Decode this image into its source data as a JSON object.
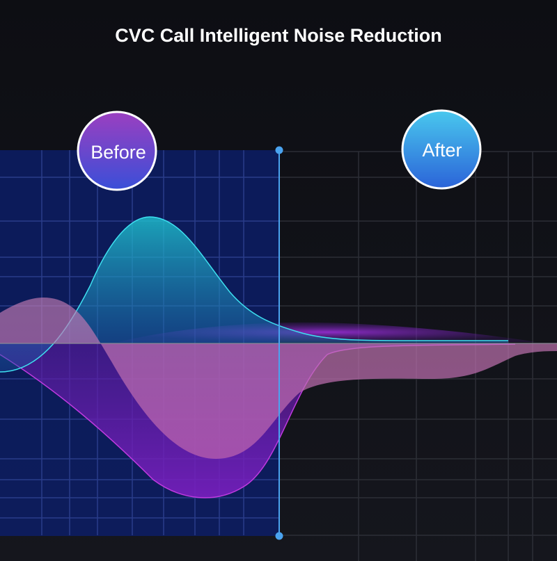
{
  "header": {
    "title": "CVC Call Intelligent Noise Reduction"
  },
  "labels": {
    "before": "Before",
    "after": "After"
  }
}
